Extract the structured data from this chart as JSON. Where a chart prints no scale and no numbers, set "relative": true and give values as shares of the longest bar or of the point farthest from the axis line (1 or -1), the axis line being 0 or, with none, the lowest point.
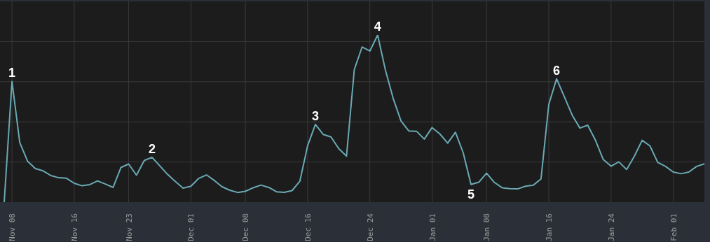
{
  "chart_data": {
    "type": "line",
    "relative": true,
    "grid": true,
    "marker": "none",
    "categories": [
      null,
      "Nov 08",
      null,
      null,
      null,
      null,
      null,
      null,
      null,
      "Nov 16",
      null,
      null,
      null,
      null,
      null,
      null,
      "Nov 23",
      null,
      null,
      null,
      null,
      null,
      null,
      null,
      "Dec 01",
      null,
      null,
      null,
      null,
      null,
      null,
      "Dec 08",
      null,
      null,
      null,
      null,
      null,
      null,
      null,
      "Dec 16",
      null,
      null,
      null,
      null,
      null,
      null,
      null,
      "Dec 24",
      null,
      null,
      null,
      null,
      null,
      null,
      null,
      "Jan 01",
      null,
      null,
      null,
      null,
      null,
      null,
      "Jan 08",
      null,
      null,
      null,
      null,
      null,
      null,
      null,
      "Jan 16",
      null,
      null,
      null,
      null,
      null,
      null,
      null,
      "Jan 24",
      null,
      null,
      null,
      null,
      null,
      null,
      null,
      "Feb 01",
      null,
      null,
      null,
      null
    ],
    "series": [
      {
        "color": "#6aa9b4",
        "values": [
          0,
          0.722,
          0.356,
          0.245,
          0.201,
          0.187,
          0.159,
          0.146,
          0.143,
          0.113,
          0.098,
          0.105,
          0.127,
          0.108,
          0.088,
          0.207,
          0.228,
          0.161,
          0.249,
          0.268,
          0.217,
          0.166,
          0.123,
          0.084,
          0.095,
          0.142,
          0.163,
          0.13,
          0.092,
          0.071,
          0.058,
          0.065,
          0.086,
          0.102,
          0.088,
          0.062,
          0.059,
          0.069,
          0.125,
          0.337,
          0.465,
          0.405,
          0.39,
          0.32,
          0.275,
          0.793,
          0.928,
          0.904,
          1,
          0.79,
          0.62,
          0.486,
          0.426,
          0.424,
          0.377,
          0.446,
          0.408,
          0.353,
          0.418,
          0.295,
          0.106,
          0.119,
          0.173,
          0.118,
          0.086,
          0.081,
          0.079,
          0.095,
          0.101,
          0.139,
          0.585,
          0.738,
          0.63,
          0.521,
          0.443,
          0.46,
          0.37,
          0.255,
          0.215,
          0.241,
          0.195,
          0.275,
          0.37,
          0.337,
          0.238,
          0.214,
          0.18,
          0.17,
          0.18,
          0.214,
          0.229
        ]
      }
    ],
    "annotations": [
      {
        "text": "1",
        "x": "Nov 08",
        "y": 0.722
      },
      {
        "text": "2",
        "y": 0.268
      },
      {
        "text": "3",
        "y": 0.465
      },
      {
        "text": "4",
        "y": 1
      },
      {
        "text": "5",
        "y": 0.106
      },
      {
        "text": "6",
        "y": 0.738
      }
    ]
  }
}
